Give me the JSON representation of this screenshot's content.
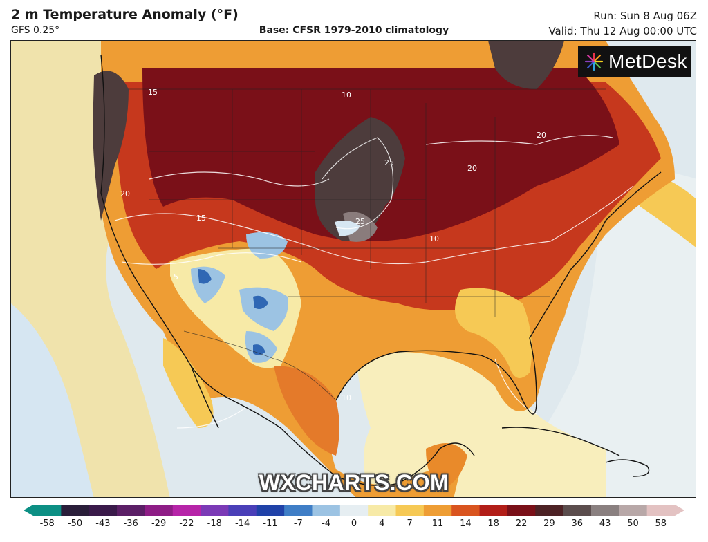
{
  "header": {
    "title": "2 m Temperature Anomaly (°F)",
    "model": "GFS 0.25°",
    "base": "Base: CFSR 1979-2010 climatology",
    "run": "Run: Sun 8 Aug 06Z",
    "valid": "Valid: Thu 12 Aug 00:00 UTC"
  },
  "logo": {
    "text": "MetDesk",
    "icon": "starburst-icon"
  },
  "watermark": "WXCHARTS.COM",
  "colors": {
    "ocean_pale": "#dfe9ee",
    "near_zero": "#f6efb0",
    "warm_light": "#f6c955",
    "warm_orange": "#e98a2a",
    "warm_red": "#c6381d",
    "hot_dark": "#7a1018",
    "extreme": "#4d3c3c",
    "cool_light": "#d6e6f2",
    "cool_blue": "#2f67b4"
  },
  "contour_labels": [
    "5",
    "10",
    "15",
    "20",
    "25"
  ],
  "scale": {
    "labels": [
      "-58",
      "-50",
      "-43",
      "-36",
      "-29",
      "-22",
      "-18",
      "-14",
      "-11",
      "-7",
      "-4",
      "0",
      "4",
      "7",
      "11",
      "14",
      "18",
      "22",
      "29",
      "36",
      "43",
      "50",
      "58"
    ],
    "colors": [
      "#0c8f84",
      "#2a1e3a",
      "#3a1a4a",
      "#5b1f66",
      "#8e1d86",
      "#b624a8",
      "#7b3ab6",
      "#4a3fb8",
      "#2042a8",
      "#3f7ec6",
      "#9cc3e3",
      "#e6eef2",
      "#f7eaa7",
      "#f6c955",
      "#ee9d34",
      "#d9541f",
      "#b21e18",
      "#7a1018",
      "#4d2225",
      "#5b4d4d",
      "#8a8080",
      "#b8a8a8",
      "#e3c2c2"
    ]
  }
}
